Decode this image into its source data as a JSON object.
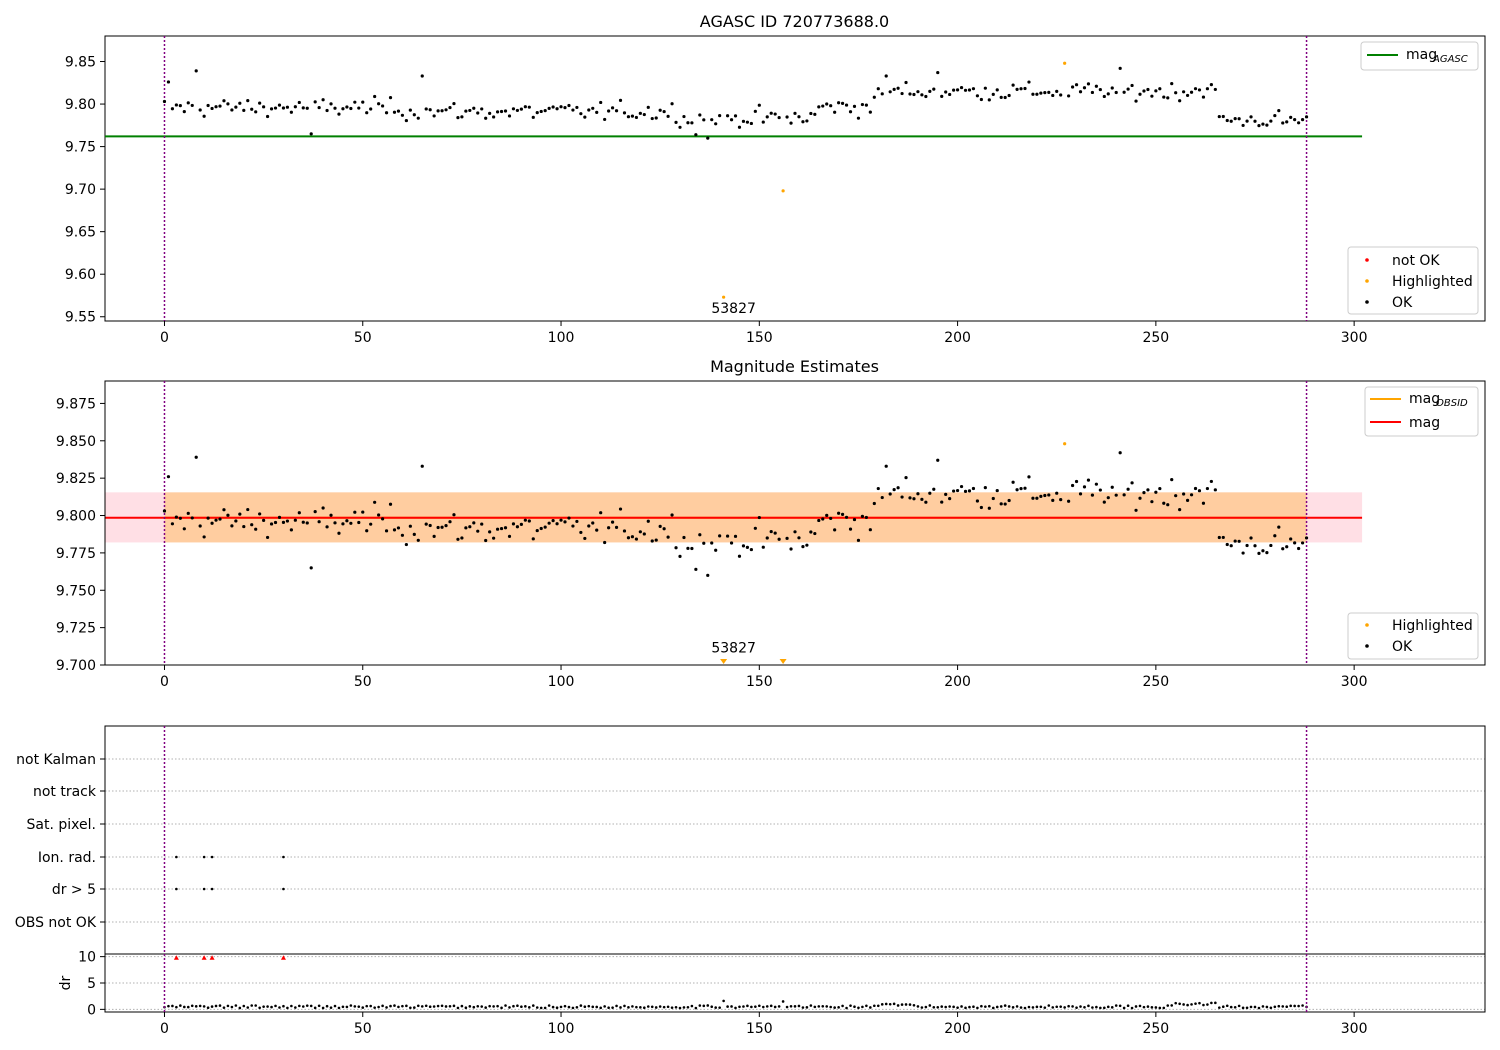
{
  "chart_data": [
    {
      "type": "scatter",
      "title": "AGASC ID 720773688.0",
      "xlim": [
        -15,
        333
      ],
      "ylim": [
        9.545,
        9.88
      ],
      "xticks": [
        0,
        50,
        100,
        150,
        200,
        250,
        300
      ],
      "yticks": [
        9.55,
        9.6,
        9.65,
        9.7,
        9.75,
        9.8,
        9.85
      ],
      "ytick_labels": [
        "9.55",
        "9.60",
        "9.65",
        "9.70",
        "9.75",
        "9.80",
        "9.85"
      ],
      "vlines": [
        0,
        288
      ],
      "hline": {
        "name_main": "mag",
        "name_sub": "AGASC",
        "y": 9.762,
        "x": [
          -15,
          302
        ],
        "color": "#008000"
      },
      "legend_top": "top-right",
      "legend_bottom": "bottom-right",
      "legend_entries": [
        {
          "name": "not OK",
          "color": "#ff0000"
        },
        {
          "name": "Highlighted",
          "color": "#ffa500"
        },
        {
          "name": "OK",
          "color": "#000000"
        }
      ],
      "highlighted": [
        {
          "x": 141,
          "y": 9.573
        },
        {
          "x": 156,
          "y": 9.698
        },
        {
          "x": 227,
          "y": 9.848
        }
      ],
      "annotations": [
        {
          "text": "53827",
          "x": 141,
          "y": 9.573
        }
      ],
      "grid": false
    },
    {
      "type": "scatter",
      "title": "Magnitude Estimates",
      "xlim": [
        -15,
        333
      ],
      "ylim": [
        9.7,
        9.89
      ],
      "xticks": [
        0,
        50,
        100,
        150,
        200,
        250,
        300
      ],
      "yticks": [
        9.7,
        9.725,
        9.75,
        9.775,
        9.8,
        9.825,
        9.85,
        9.875
      ],
      "ytick_labels": [
        "9.700",
        "9.725",
        "9.750",
        "9.775",
        "9.800",
        "9.825",
        "9.850",
        "9.875"
      ],
      "vlines": [
        0,
        288
      ],
      "lines": [
        {
          "name_main": "mag",
          "name_sub": "OBSID",
          "y": 9.7985,
          "x": [
            0,
            288
          ],
          "color": "#ffa500"
        },
        {
          "name_main": "mag",
          "name_sub": "",
          "y": 9.7985,
          "x": [
            -15,
            302
          ],
          "color": "#ff0000"
        }
      ],
      "bands": [
        {
          "y0": 9.782,
          "y1": 9.8155,
          "x": [
            -15,
            302
          ],
          "color": "#ffc0cb",
          "opacity": 0.5
        },
        {
          "y0": 9.782,
          "y1": 9.8155,
          "x": [
            0,
            288
          ],
          "color": "#ffa500",
          "opacity": 0.3
        }
      ],
      "legend_top": "top-right",
      "legend_bottom": "bottom-right",
      "legend_entries": [
        {
          "name": "Highlighted",
          "color": "#ffa500"
        },
        {
          "name": "OK",
          "color": "#000000"
        }
      ],
      "highlighted": [
        {
          "x": 227,
          "y": 9.848
        }
      ],
      "offscale_markers": [
        {
          "x": 141
        },
        {
          "x": 156
        }
      ],
      "annotations": [
        {
          "text": "53827",
          "x": 141,
          "y": 9.703
        }
      ],
      "grid": false
    },
    {
      "type": "scatter",
      "title": "",
      "xlim": [
        -15,
        333
      ],
      "xticks": [
        0,
        50,
        100,
        150,
        200,
        250,
        300
      ],
      "vlines": [
        0,
        288
      ],
      "flag_rows": [
        "not Kalman",
        "not track",
        "Sat. pixel.",
        "Ion. rad.",
        "dr > 5",
        "OBS not OK"
      ],
      "flags": {
        "Ion. rad.": [
          3,
          10,
          12,
          30
        ],
        "dr > 5": [
          3,
          10,
          12,
          30
        ]
      },
      "dr_panel": {
        "ylabel": "dr",
        "yticks": [
          0,
          5,
          10
        ],
        "ylim": [
          -0.5,
          10.5
        ],
        "red_points": [
          {
            "x": 3,
            "y": 9.8
          },
          {
            "x": 10,
            "y": 9.8
          },
          {
            "x": 12,
            "y": 9.8
          },
          {
            "x": 30,
            "y": 9.8
          }
        ],
        "spikes": [
          {
            "x": 141,
            "y": 1.6
          },
          {
            "x": 156,
            "y": 1.5
          }
        ]
      },
      "grid": "horizontal dotted"
    }
  ],
  "series_spec": {
    "n_points": 289,
    "mag_segments": [
      {
        "from": 0,
        "to": 60,
        "base": 9.796
      },
      {
        "from": 60,
        "to": 130,
        "base": 9.791
      },
      {
        "from": 130,
        "to": 165,
        "base": 9.784
      },
      {
        "from": 165,
        "to": 180,
        "base": 9.797
      },
      {
        "from": 180,
        "to": 260,
        "base": 9.815
      },
      {
        "from": 260,
        "to": 266,
        "base": 9.817
      },
      {
        "from": 266,
        "to": 289,
        "base": 9.781
      }
    ],
    "mag_noise": 0.009,
    "mag_outliers": [
      {
        "x": 8,
        "y": 9.839
      },
      {
        "x": 37,
        "y": 9.765
      },
      {
        "x": 65,
        "y": 9.833
      },
      {
        "x": 137,
        "y": 9.76
      },
      {
        "x": 134,
        "y": 9.764
      },
      {
        "x": 182,
        "y": 9.833
      },
      {
        "x": 241,
        "y": 9.842
      },
      {
        "x": 195,
        "y": 9.837
      },
      {
        "x": 1,
        "y": 9.826
      }
    ],
    "dr_base": 0.5,
    "dr_noise": 0.25
  }
}
